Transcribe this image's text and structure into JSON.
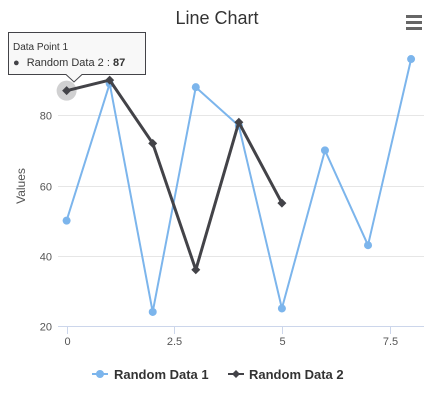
{
  "chart_data": {
    "type": "line",
    "title": "Line Chart",
    "xlabel": "",
    "ylabel": "Values",
    "xlim": [
      -0.2,
      8.3
    ],
    "ylim": [
      20,
      100
    ],
    "x_ticks": [
      0,
      2.5,
      5,
      7.5
    ],
    "x_tick_labels": [
      "0",
      "2.5",
      "5",
      "7.5"
    ],
    "y_ticks": [
      20,
      40,
      60,
      80
    ],
    "y_tick_labels": [
      "20",
      "40",
      "60",
      "80"
    ],
    "grid": "horizontal",
    "legend_position": "bottom",
    "series": [
      {
        "name": "Random Data 1",
        "color": "#7cb5ec",
        "marker": "circle",
        "x": [
          0,
          1,
          2,
          3,
          4,
          5,
          6,
          7,
          8
        ],
        "values": [
          50,
          89,
          24,
          88,
          77,
          25,
          70,
          43,
          96
        ]
      },
      {
        "name": "Random Data 2",
        "color": "#434348",
        "marker": "diamond",
        "x": [
          0,
          1,
          2,
          3,
          4,
          5
        ],
        "values": [
          87,
          90,
          72,
          36,
          78,
          55
        ]
      }
    ],
    "tooltip": {
      "header": "Data Point 1",
      "series_name": "Random Data 2",
      "value": "87",
      "bullet": "●"
    }
  },
  "menu_icon": "hamburger-menu-icon"
}
